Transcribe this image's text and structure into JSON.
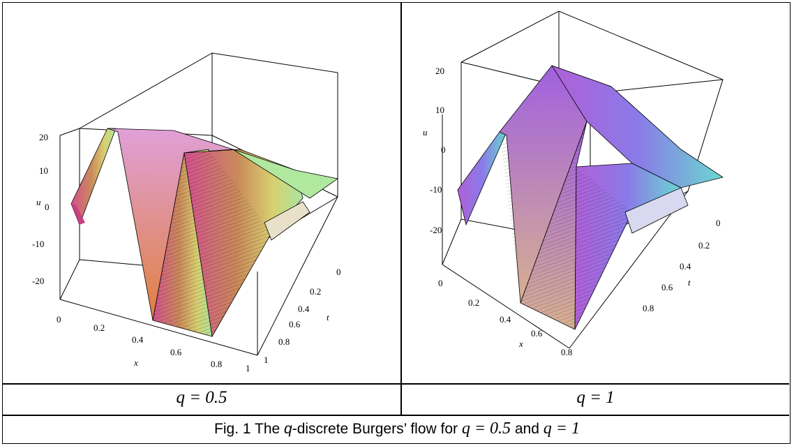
{
  "panels": [
    {
      "label": "q = 0.5",
      "q": "0.5",
      "u_ticks": [
        "20",
        "10",
        "0",
        "-10",
        "-20"
      ],
      "x_ticks": [
        "0",
        "0.2",
        "0.4",
        "0.6",
        "0.8",
        "1"
      ],
      "t_ticks": [
        "0",
        "0.2",
        "0.4",
        "0.6",
        "0.8",
        "1"
      ],
      "axis_labels": {
        "u": "u",
        "x": "x",
        "t": "t"
      }
    },
    {
      "label": "q = 1",
      "q": "1",
      "u_ticks": [
        "20",
        "10",
        "0",
        "-10",
        "-20"
      ],
      "x_ticks": [
        "0",
        "0.2",
        "0.4",
        "0.6",
        "0.8"
      ],
      "t_ticks": [
        "0",
        "0.2",
        "0.4",
        "0.6",
        "0.8"
      ],
      "axis_labels": {
        "u": "u",
        "x": "x",
        "t": "t"
      }
    }
  ],
  "caption": {
    "prefix": "Fig. 1 The ",
    "q_italic": "q",
    "middle": "-discrete Burgers’ flow for ",
    "eq1": "q = 0.5",
    "and": " and ",
    "eq2": "q = 1"
  },
  "colors": {
    "panel1_left": "#d4508f",
    "panel1_mid": "#c98a5a",
    "panel1_right": "#a8e6a0",
    "panel2_left": "#b060d8",
    "panel2_mid": "#8a7ae8",
    "panel2_right": "#6ad8d0"
  }
}
